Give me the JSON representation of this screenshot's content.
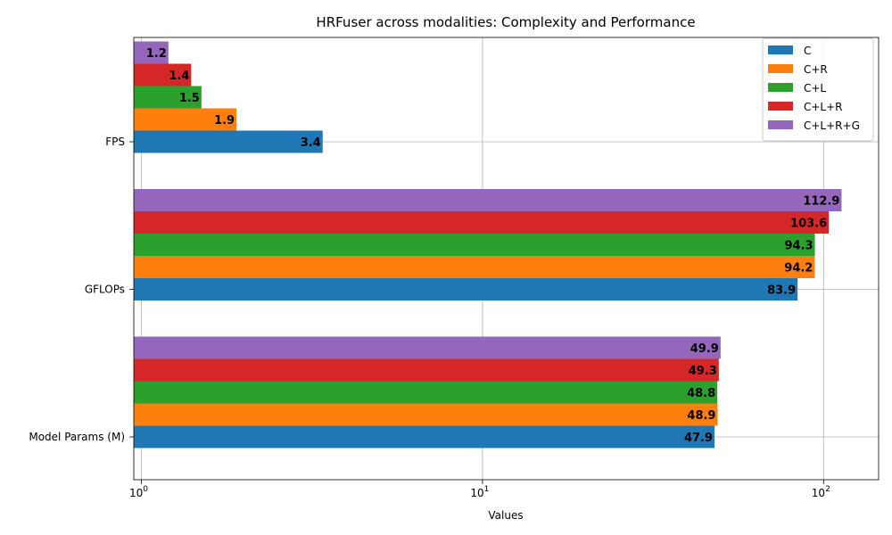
{
  "chart_data": {
    "type": "bar",
    "orientation": "horizontal",
    "title": "HRFuser across modalities: Complexity and Performance",
    "xlabel": "Values",
    "ylabel": "",
    "x_scale": "log",
    "xlim": [
      0.95,
      145
    ],
    "x_ticks": [
      {
        "value": 1,
        "base": "10",
        "exp": "0"
      },
      {
        "value": 10,
        "base": "10",
        "exp": "1"
      },
      {
        "value": 100,
        "base": "10",
        "exp": "2"
      }
    ],
    "grid": true,
    "legend_position": "top-right",
    "categories": [
      "Model Params (M)",
      "GFLOPs",
      "FPS"
    ],
    "series": [
      {
        "name": "C",
        "color": "#1f77b4",
        "values": [
          47.9,
          83.9,
          3.4
        ],
        "labels": [
          "47.9",
          "83.9",
          "3.4"
        ]
      },
      {
        "name": "C+R",
        "color": "#ff7f0e",
        "values": [
          48.9,
          94.2,
          1.9
        ],
        "labels": [
          "48.9",
          "94.2",
          "1.9"
        ]
      },
      {
        "name": "C+L",
        "color": "#2ca02c",
        "values": [
          48.8,
          94.3,
          1.5
        ],
        "labels": [
          "48.8",
          "94.3",
          "1.5"
        ]
      },
      {
        "name": "C+L+R",
        "color": "#d62728",
        "values": [
          49.3,
          103.6,
          1.4
        ],
        "labels": [
          "49.3",
          "103.6",
          "1.4"
        ]
      },
      {
        "name": "C+L+R+G",
        "color": "#9467bd",
        "values": [
          49.9,
          112.9,
          1.2
        ],
        "labels": [
          "49.9",
          "112.9",
          "1.2"
        ]
      }
    ]
  }
}
